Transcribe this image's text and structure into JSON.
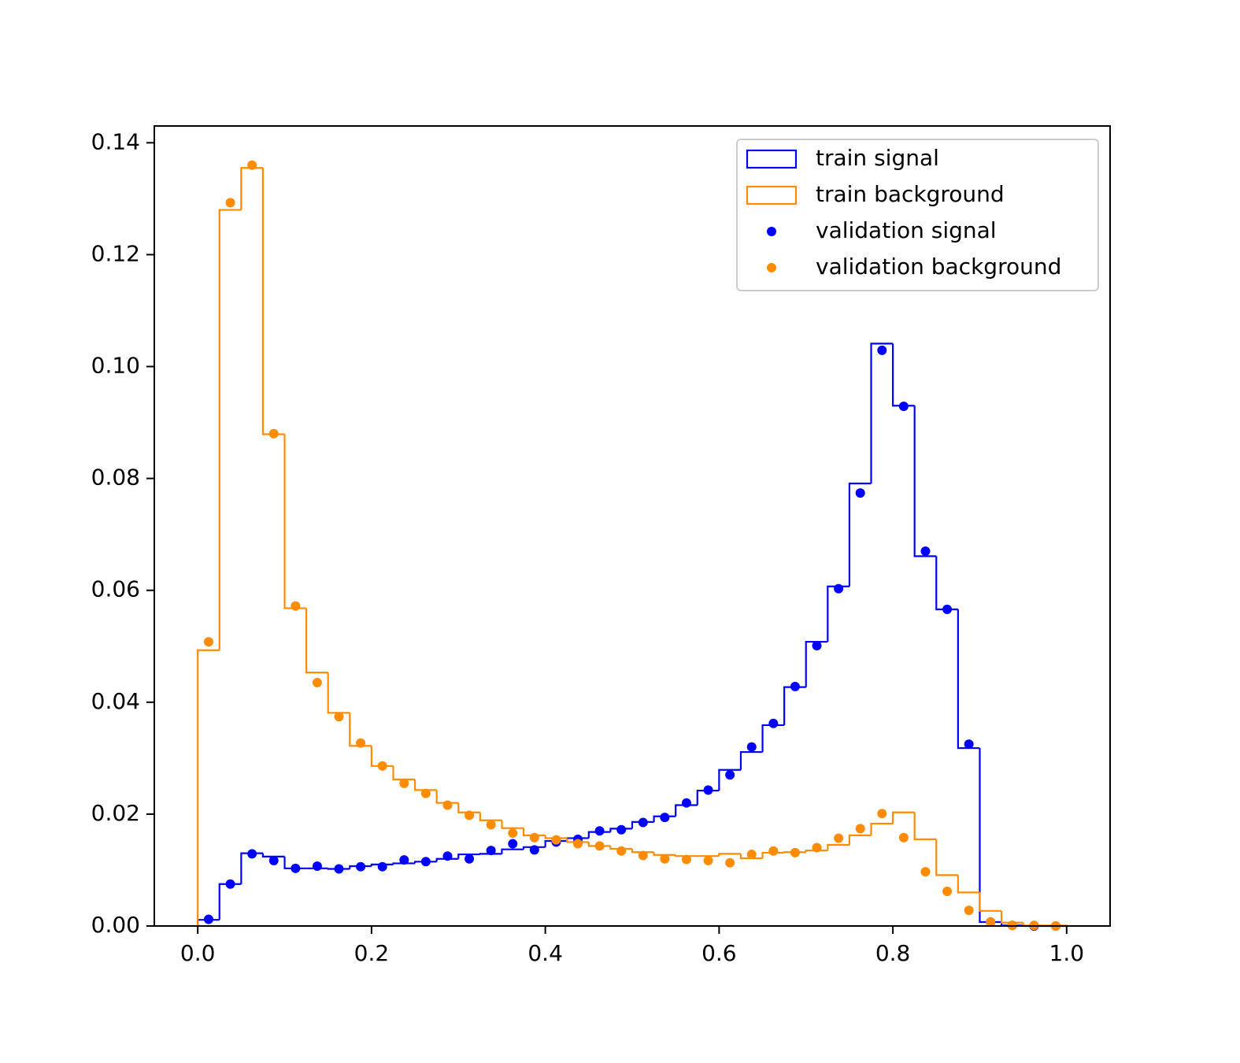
{
  "chart_data": {
    "type": "histogram",
    "bins": [
      0,
      0.025,
      0.05,
      0.075,
      0.1,
      0.125,
      0.15,
      0.175,
      0.2,
      0.225,
      0.25,
      0.275,
      0.3,
      0.325,
      0.35,
      0.375,
      0.4,
      0.425,
      0.45,
      0.475,
      0.5,
      0.525,
      0.55,
      0.575,
      0.6,
      0.625,
      0.65,
      0.675,
      0.7,
      0.725,
      0.75,
      0.775,
      0.8,
      0.825,
      0.85,
      0.875,
      0.9,
      0.925,
      0.95,
      0.975,
      1
    ],
    "series": [
      {
        "name": "train signal",
        "color": "#0000ff",
        "style": "step",
        "values": [
          0.0011,
          0.0075,
          0.013,
          0.0124,
          0.0103,
          0.0103,
          0.0102,
          0.0107,
          0.011,
          0.0112,
          0.0115,
          0.012,
          0.0128,
          0.0129,
          0.0137,
          0.0141,
          0.0152,
          0.0157,
          0.0168,
          0.0174,
          0.0186,
          0.0196,
          0.0216,
          0.0242,
          0.0279,
          0.0311,
          0.0359,
          0.0427,
          0.0508,
          0.0607,
          0.0791,
          0.1041,
          0.093,
          0.0661,
          0.0566,
          0.0318,
          0.0007,
          0.0001,
          0,
          0
        ]
      },
      {
        "name": "train background",
        "color": "#ff8c00",
        "style": "step",
        "values": [
          0.0493,
          0.128,
          0.1355,
          0.0879,
          0.0568,
          0.0453,
          0.0381,
          0.0322,
          0.0286,
          0.0262,
          0.0243,
          0.022,
          0.0203,
          0.0189,
          0.0175,
          0.0162,
          0.0157,
          0.015,
          0.0143,
          0.0138,
          0.0132,
          0.0127,
          0.0125,
          0.0125,
          0.0129,
          0.0121,
          0.0131,
          0.0132,
          0.0135,
          0.0145,
          0.0162,
          0.0183,
          0.0203,
          0.0155,
          0.0091,
          0.006,
          0.0027,
          0.0006,
          0.0001,
          0.0001
        ]
      },
      {
        "name": "validation signal",
        "color": "#0000ff",
        "style": "points",
        "values": [
          0.0012,
          0.0075,
          0.0129,
          0.0117,
          0.0103,
          0.0107,
          0.0102,
          0.0106,
          0.0106,
          0.0118,
          0.0115,
          0.0125,
          0.012,
          0.0135,
          0.0147,
          0.0136,
          0.015,
          0.0155,
          0.017,
          0.0172,
          0.0185,
          0.0194,
          0.022,
          0.0243,
          0.027,
          0.032,
          0.0362,
          0.0428,
          0.0501,
          0.0603,
          0.0774,
          0.1029,
          0.0929,
          0.067,
          0.0566,
          0.0325,
          0.0007,
          0.0001,
          0,
          0
        ]
      },
      {
        "name": "validation background",
        "color": "#ff8c00",
        "style": "points",
        "values": [
          0.0508,
          0.1293,
          0.136,
          0.088,
          0.0572,
          0.0435,
          0.0374,
          0.0327,
          0.0286,
          0.0255,
          0.0237,
          0.0216,
          0.0198,
          0.0181,
          0.0166,
          0.0158,
          0.0154,
          0.0147,
          0.0143,
          0.0134,
          0.0126,
          0.012,
          0.0119,
          0.0117,
          0.0113,
          0.0128,
          0.0134,
          0.0131,
          0.014,
          0.0157,
          0.0174,
          0.0201,
          0.0158,
          0.0097,
          0.0062,
          0.0028,
          0.0007,
          0.0001,
          0.0001,
          0
        ]
      }
    ],
    "xlim": [
      -0.05,
      1.05
    ],
    "xticks": [
      {
        "value": 0,
        "label": "0.0"
      },
      0.2,
      0.4,
      0.6,
      0.8,
      {
        "value": 1,
        "label": "1.0"
      }
    ],
    "ylim": [
      0,
      0.143
    ],
    "yticks": [
      {
        "value": 0,
        "label": "0.00"
      },
      0.02,
      0.04,
      0.06,
      0.08,
      {
        "value": 0.1,
        "label": "0.10"
      },
      0.12,
      0.14
    ],
    "legend": "upper right"
  }
}
